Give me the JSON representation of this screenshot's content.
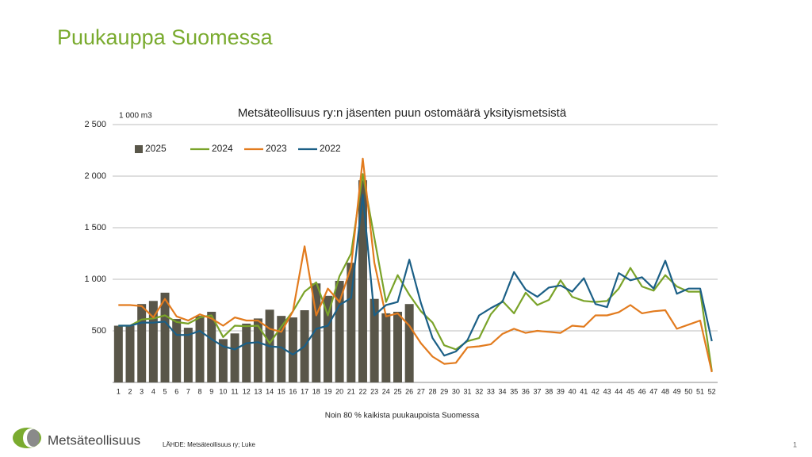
{
  "slide": {
    "title": "Puukauppa Suomessa",
    "logo": "Metsäteollisuus",
    "source": "LÄHDE: Metsäteollisuus ry; Luke",
    "page_number": "1"
  },
  "chart_data": {
    "type": "combo",
    "title": "Metsäteollisuus ry:n jäsenten puun ostomäärä yksityismetsistä",
    "unit_label": "1 000 m3",
    "x_label": "Noin 80 % kaikista puukaupoista Suomessa",
    "categories": [
      1,
      2,
      3,
      4,
      5,
      6,
      7,
      8,
      9,
      10,
      11,
      12,
      13,
      14,
      15,
      16,
      17,
      18,
      19,
      20,
      21,
      22,
      23,
      24,
      25,
      26,
      27,
      28,
      29,
      30,
      31,
      32,
      33,
      34,
      35,
      36,
      37,
      38,
      39,
      40,
      41,
      42,
      43,
      44,
      45,
      46,
      47,
      48,
      49,
      50,
      51,
      52
    ],
    "ylim": [
      0,
      2500
    ],
    "yticks": [
      500,
      {
        "value": 1000,
        "label": "1 000"
      },
      {
        "value": 1500,
        "label": "1 500"
      },
      {
        "value": 2000,
        "label": "2 000"
      },
      {
        "value": 2500,
        "label": "2 500"
      }
    ],
    "grid": true,
    "legend": "top-left",
    "series": [
      {
        "name": "2025",
        "type": "bar",
        "color": "#595649",
        "values": [
          550,
          550,
          760,
          790,
          870,
          615,
          530,
          645,
          685,
          420,
          475,
          570,
          620,
          705,
          645,
          630,
          700,
          960,
          840,
          985,
          1160,
          1960,
          810,
          670,
          685,
          760,
          null,
          null,
          null,
          null,
          null,
          null,
          null,
          null,
          null,
          null,
          null,
          null,
          null,
          null,
          null,
          null,
          null,
          null,
          null,
          null,
          null,
          null,
          null,
          null,
          null,
          null
        ]
      },
      {
        "name": "2024",
        "type": "line",
        "color": "#7aa329",
        "values": [
          550,
          550,
          610,
          620,
          650,
          585,
          570,
          630,
          650,
          440,
          550,
          545,
          550,
          380,
          540,
          690,
          880,
          970,
          650,
          1030,
          1250,
          2020,
          1400,
          780,
          1040,
          850,
          690,
          580,
          360,
          320,
          400,
          430,
          660,
          790,
          670,
          870,
          750,
          800,
          990,
          830,
          790,
          780,
          790,
          910,
          1110,
          930,
          890,
          1040,
          930,
          880,
          880,
          110
        ]
      },
      {
        "name": "2023",
        "type": "line",
        "color": "#e27b1e",
        "values": [
          750,
          750,
          740,
          630,
          810,
          640,
          600,
          660,
          620,
          550,
          630,
          600,
          600,
          520,
          490,
          690,
          1320,
          650,
          910,
          780,
          1120,
          2170,
          1160,
          640,
          670,
          550,
          380,
          250,
          180,
          190,
          340,
          350,
          370,
          470,
          520,
          480,
          500,
          490,
          480,
          550,
          540,
          650,
          650,
          680,
          750,
          670,
          690,
          700,
          520,
          560,
          600,
          100
        ]
      },
      {
        "name": "2022",
        "type": "line",
        "color": "#1b5f86",
        "values": [
          550,
          550,
          580,
          580,
          590,
          460,
          460,
          500,
          420,
          350,
          320,
          380,
          390,
          350,
          340,
          270,
          350,
          520,
          550,
          750,
          820,
          1820,
          650,
          750,
          780,
          1190,
          770,
          430,
          260,
          300,
          410,
          650,
          720,
          780,
          1070,
          900,
          830,
          920,
          940,
          880,
          1010,
          760,
          730,
          1060,
          990,
          1020,
          910,
          1180,
          860,
          910,
          910,
          400
        ]
      }
    ]
  }
}
